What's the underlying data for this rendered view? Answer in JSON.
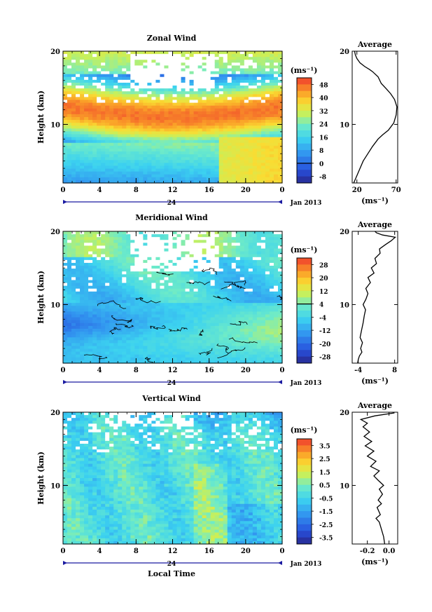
{
  "chart_data": [
    {
      "type": "heatmap",
      "title": "Zonal Wind",
      "xlabel": "",
      "ylabel": "Height (km)",
      "x_ticks": [
        "0",
        "4",
        "8",
        "12",
        "16",
        "20",
        "0"
      ],
      "x_range": [
        0,
        24
      ],
      "y_ticks": [
        "20",
        "10"
      ],
      "y_range": [
        2,
        20
      ],
      "day_label": "24",
      "date_label": "Jan 2013",
      "colorbar": {
        "unit_label": "(ms⁻¹)",
        "ticks": [
          "48",
          "40",
          "32",
          "24",
          "16",
          "8",
          "0",
          "-8"
        ],
        "range": [
          -12,
          52
        ]
      },
      "average_profile": {
        "title": "Average",
        "x_ticks": [
          "20",
          "70"
        ],
        "x_range": [
          14,
          72
        ],
        "y_ticks": [
          "20",
          "10"
        ],
        "unit_label": "(ms⁻¹)",
        "points": [
          [
            16,
            2.0
          ],
          [
            20,
            3.0
          ],
          [
            24,
            4.0
          ],
          [
            28,
            5.0
          ],
          [
            34,
            6.0
          ],
          [
            40,
            7.0
          ],
          [
            47,
            8.0
          ],
          [
            53,
            8.6
          ],
          [
            60,
            9.2
          ],
          [
            67,
            10.2
          ],
          [
            70,
            11.3
          ],
          [
            71,
            12.4
          ],
          [
            68,
            13.4
          ],
          [
            63,
            14.2
          ],
          [
            58,
            14.8
          ],
          [
            51,
            15.6
          ],
          [
            47,
            16.5
          ],
          [
            40,
            17.2
          ],
          [
            36,
            17.5
          ],
          [
            30,
            17.9
          ],
          [
            24,
            18.4
          ],
          [
            20,
            19.0
          ],
          [
            18,
            19.5
          ],
          [
            17,
            20.0
          ]
        ]
      }
    },
    {
      "type": "heatmap",
      "title": "Meridional Wind",
      "xlabel": "",
      "ylabel": "Height (km)",
      "x_ticks": [
        "0",
        "4",
        "8",
        "12",
        "16",
        "20",
        "0"
      ],
      "x_range": [
        0,
        24
      ],
      "y_ticks": [
        "20",
        "10"
      ],
      "y_range": [
        2,
        20
      ],
      "day_label": "24",
      "date_label": "Jan 2013",
      "colorbar": {
        "unit_label": "(ms⁻¹)",
        "ticks": [
          "28",
          "20",
          "12",
          "4",
          "-4",
          "-12",
          "-20",
          "-28"
        ],
        "range": [
          -32,
          32
        ]
      },
      "average_profile": {
        "title": "Average",
        "x_ticks": [
          "-4",
          "8"
        ],
        "x_range": [
          -6,
          9
        ],
        "y_ticks": [
          "20",
          "10"
        ],
        "unit_label": "(ms⁻¹)",
        "points": [
          [
            -4.2,
            2.0
          ],
          [
            -4.0,
            2.5
          ],
          [
            -3.6,
            3.0
          ],
          [
            -2.8,
            3.5
          ],
          [
            -3.2,
            4.0
          ],
          [
            -2.6,
            4.8
          ],
          [
            -3.4,
            5.5
          ],
          [
            -2.9,
            6.5
          ],
          [
            -2.4,
            7.5
          ],
          [
            -2.0,
            8.5
          ],
          [
            -1.6,
            9.3
          ],
          [
            -2.4,
            10.0
          ],
          [
            -1.5,
            10.7
          ],
          [
            -0.8,
            11.5
          ],
          [
            -1.5,
            12.2
          ],
          [
            0.0,
            13.0
          ],
          [
            -0.8,
            13.7
          ],
          [
            1.2,
            14.3
          ],
          [
            0.3,
            15.0
          ],
          [
            2.0,
            15.6
          ],
          [
            1.5,
            16.3
          ],
          [
            3.2,
            17.0
          ],
          [
            3.0,
            17.6
          ],
          [
            5.0,
            18.2
          ],
          [
            6.8,
            18.7
          ],
          [
            8.2,
            19.2
          ],
          [
            4.0,
            19.5
          ],
          [
            2.0,
            19.8
          ],
          [
            1.5,
            20.0
          ]
        ]
      }
    },
    {
      "type": "heatmap",
      "title": "Vertical Wind",
      "xlabel": "Local Time",
      "ylabel": "Height (km)",
      "x_ticks": [
        "0",
        "4",
        "8",
        "12",
        "16",
        "20",
        "0"
      ],
      "x_range": [
        0,
        24
      ],
      "y_ticks": [
        "20",
        "10"
      ],
      "y_range": [
        2,
        20
      ],
      "day_label": "24",
      "date_label": "Jan 2013",
      "colorbar": {
        "unit_label": "(ms⁻¹)",
        "ticks": [
          "3.5",
          "2.5",
          "1.5",
          "0.5",
          "-0.5",
          "-1.5",
          "-2.5",
          "-3.5"
        ],
        "range": [
          -4,
          4
        ]
      },
      "average_profile": {
        "title": "Average",
        "x_ticks": [
          "-0.2",
          "0.0"
        ],
        "x_range": [
          -0.34,
          0.08
        ],
        "y_ticks": [
          "20",
          "10"
        ],
        "unit_label": "(ms⁻¹)",
        "points": [
          [
            -0.04,
            2.0
          ],
          [
            -0.05,
            3.0
          ],
          [
            -0.07,
            4.0
          ],
          [
            -0.09,
            5.0
          ],
          [
            -0.12,
            5.5
          ],
          [
            -0.08,
            6.0
          ],
          [
            -0.11,
            7.0
          ],
          [
            -0.07,
            7.5
          ],
          [
            -0.1,
            8.0
          ],
          [
            -0.06,
            8.8
          ],
          [
            -0.09,
            9.5
          ],
          [
            -0.05,
            10.0
          ],
          [
            -0.1,
            10.7
          ],
          [
            -0.14,
            11.3
          ],
          [
            -0.09,
            12.0
          ],
          [
            -0.17,
            12.6
          ],
          [
            -0.12,
            13.3
          ],
          [
            -0.2,
            14.0
          ],
          [
            -0.14,
            14.7
          ],
          [
            -0.22,
            15.4
          ],
          [
            -0.16,
            16.0
          ],
          [
            -0.23,
            16.7
          ],
          [
            -0.18,
            17.3
          ],
          [
            -0.24,
            18.0
          ],
          [
            -0.2,
            18.5
          ],
          [
            -0.26,
            19.0
          ],
          [
            -0.13,
            19.5
          ],
          [
            0.05,
            19.9
          ]
        ]
      }
    }
  ]
}
